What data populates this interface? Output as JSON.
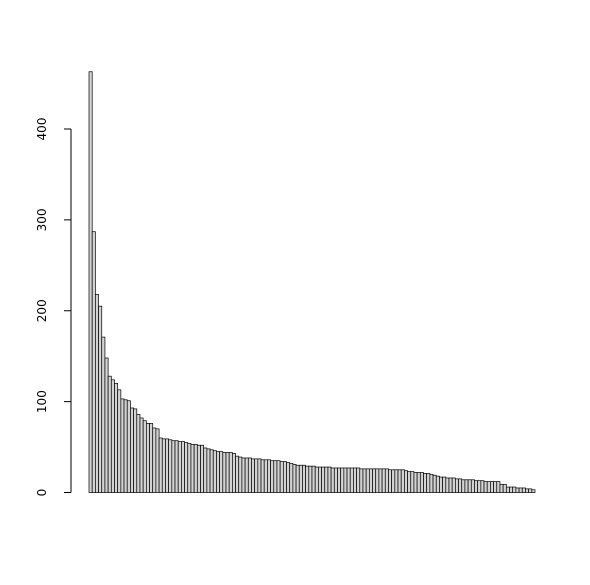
{
  "chart_data": {
    "type": "bar",
    "title": "",
    "xlabel": "",
    "ylabel": "",
    "ylim": [
      0,
      470
    ],
    "yticks": [
      0,
      100,
      200,
      300,
      400
    ],
    "ytick_labels": [
      "0",
      "100",
      "200",
      "300",
      "400"
    ],
    "grid": false,
    "legend": "none",
    "bar_fill": "#d3d3d3",
    "bar_stroke": "#000000",
    "values": [
      463,
      287,
      218,
      205,
      171,
      148,
      128,
      124,
      120,
      113,
      103,
      102,
      101,
      93,
      92,
      86,
      82,
      79,
      76,
      76,
      71,
      70,
      60,
      59,
      59,
      58,
      57,
      57,
      56,
      56,
      55,
      54,
      53,
      53,
      52,
      52,
      49,
      48,
      47,
      46,
      45,
      45,
      44,
      44,
      44,
      43,
      40,
      39,
      38,
      38,
      38,
      37,
      37,
      37,
      36,
      36,
      36,
      35,
      35,
      35,
      34,
      34,
      33,
      32,
      31,
      30,
      30,
      30,
      29,
      29,
      29,
      28,
      28,
      28,
      28,
      28,
      27,
      27,
      27,
      27,
      27,
      27,
      27,
      27,
      27,
      26,
      26,
      26,
      26,
      26,
      26,
      26,
      26,
      26,
      25,
      25,
      25,
      25,
      25,
      24,
      23,
      23,
      22,
      22,
      22,
      21,
      21,
      20,
      19,
      18,
      17,
      17,
      16,
      16,
      16,
      15,
      15,
      14,
      14,
      14,
      14,
      13,
      13,
      13,
      12,
      12,
      12,
      12,
      12,
      9,
      9,
      6,
      6,
      6,
      5,
      5,
      5,
      4,
      4,
      3
    ]
  }
}
